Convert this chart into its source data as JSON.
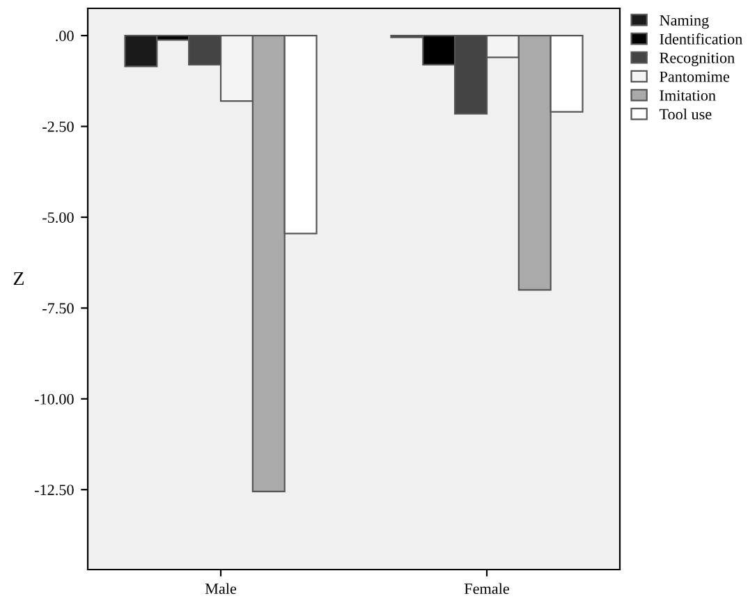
{
  "chart_data": {
    "type": "bar",
    "ylabel": "Z",
    "categories": [
      "Male",
      "Female"
    ],
    "series": [
      {
        "name": "Naming",
        "color": "#1a1a1a",
        "values": [
          -0.85,
          -0.05
        ]
      },
      {
        "name": "Identification",
        "color": "#000000",
        "values": [
          -0.12,
          -0.8
        ]
      },
      {
        "name": "Recognition",
        "color": "#444444",
        "values": [
          -0.8,
          -2.15
        ]
      },
      {
        "name": "Pantomime",
        "color": "#f4f4f4",
        "values": [
          -1.8,
          -0.6
        ]
      },
      {
        "name": "Imitation",
        "color": "#aaaaaa",
        "values": [
          -12.55,
          -7.0
        ]
      },
      {
        "name": "Tool use",
        "color": "#ffffff",
        "values": [
          -5.45,
          -2.1
        ]
      }
    ],
    "ylim": [
      -14.7,
      0.75
    ],
    "yticks": [
      {
        "value": 0,
        "label": ".00"
      },
      {
        "value": -2.5,
        "label": "-2.50"
      },
      {
        "value": -5,
        "label": "-5.00"
      },
      {
        "value": -7.5,
        "label": "-7.50"
      },
      {
        "value": -10,
        "label": "-10.00"
      },
      {
        "value": -12.5,
        "label": "-12.50"
      }
    ],
    "grid": false,
    "legend": "top right"
  }
}
